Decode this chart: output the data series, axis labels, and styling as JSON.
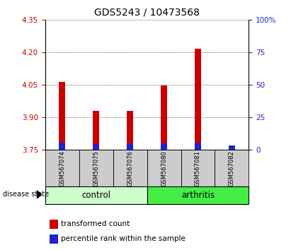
{
  "title": "GDS5243 / 10473568",
  "samples": [
    "GSM567074",
    "GSM567075",
    "GSM567076",
    "GSM567080",
    "GSM567081",
    "GSM567082"
  ],
  "groups": [
    "control",
    "control",
    "control",
    "arthritis",
    "arthritis",
    "arthritis"
  ],
  "transformed_count": [
    4.063,
    3.932,
    3.932,
    4.048,
    4.218,
    3.752
  ],
  "percentile_rank": [
    5.5,
    4.5,
    5.0,
    5.0,
    5.5,
    3.5
  ],
  "ylim_left": [
    3.75,
    4.35
  ],
  "ylim_right": [
    0,
    100
  ],
  "yticks_left": [
    3.75,
    3.9,
    4.05,
    4.2,
    4.35
  ],
  "yticks_right": [
    0,
    25,
    50,
    75,
    100
  ],
  "bar_base": 3.75,
  "bar_width": 0.18,
  "red_color": "#cc0000",
  "blue_color": "#2222cc",
  "control_light_color": "#ccffcc",
  "arthritis_color": "#44ee44",
  "label_box_color": "#cccccc",
  "title_fontsize": 10,
  "tick_fontsize": 7.5,
  "legend_fontsize": 7.5,
  "group_label_fontsize": 8.5
}
